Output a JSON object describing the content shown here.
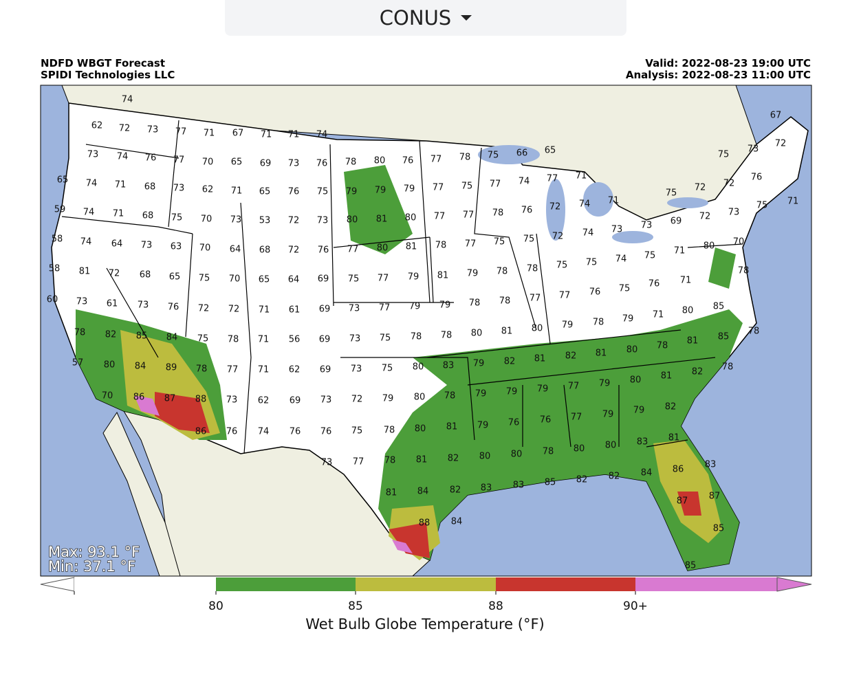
{
  "dropdown": {
    "label": "CONUS"
  },
  "header": {
    "title": "NDFD WBGT Forecast",
    "org": "SPIDI Technologies LLC",
    "valid": "Valid: 2022-08-23 19:00 UTC",
    "analysis": "Analysis: 2022-08-23 11:00 UTC"
  },
  "stats": {
    "max": "Max: 93.1 °F",
    "min": "Min: 37.1 °F"
  },
  "colorbar": {
    "colors": [
      "#ffffff",
      "#4c9e3a",
      "#bcbc3e",
      "#c8352e",
      "#d97ad1"
    ],
    "ticks": [
      "80",
      "85",
      "88",
      "90+"
    ],
    "label": "Wet Bulb Globe Temperature (°F)"
  },
  "map": {
    "station_values": [
      74,
      62,
      72,
      73,
      77,
      71,
      67,
      71,
      71,
      74,
      73,
      74,
      76,
      77,
      70,
      65,
      69,
      73,
      76,
      78,
      80,
      76,
      77,
      78,
      75,
      66,
      65,
      65,
      74,
      71,
      68,
      73,
      62,
      71,
      65,
      76,
      75,
      79,
      79,
      79,
      77,
      75,
      77,
      74,
      77,
      71,
      59,
      74,
      71,
      68,
      75,
      70,
      73,
      53,
      72,
      73,
      80,
      81,
      80,
      77,
      77,
      78,
      76,
      72,
      74,
      71,
      58,
      74,
      64,
      73,
      63,
      70,
      64,
      68,
      72,
      76,
      77,
      80,
      81,
      78,
      77,
      75,
      75,
      72,
      74,
      73,
      58,
      81,
      72,
      68,
      65,
      75,
      70,
      65,
      64,
      69,
      75,
      77,
      79,
      81,
      79,
      78,
      78,
      75,
      75,
      74,
      60,
      73,
      61,
      73,
      76,
      72,
      72,
      71,
      61,
      69,
      73,
      77,
      79,
      79,
      78,
      78,
      77,
      77,
      76,
      75,
      78,
      82,
      85,
      84,
      75,
      78,
      71,
      56,
      69,
      73,
      75,
      78,
      78,
      80,
      81,
      80,
      79,
      78,
      79,
      57,
      80,
      84,
      89,
      78,
      77,
      71,
      62,
      69,
      73,
      75,
      80,
      83,
      79,
      82,
      81,
      82,
      81,
      80,
      78,
      81,
      85,
      70,
      86,
      87,
      88,
      73,
      62,
      69,
      73,
      72,
      79,
      80,
      78,
      79,
      79,
      79,
      77,
      79,
      80,
      81,
      82,
      78,
      86,
      76,
      74,
      76,
      76,
      75,
      78,
      80,
      81,
      79,
      76,
      76,
      77,
      79,
      79,
      82,
      73,
      77,
      78,
      81,
      82,
      80,
      80,
      78,
      80,
      80,
      83,
      81,
      81,
      84,
      82,
      83,
      83,
      85,
      82,
      82,
      84,
      86,
      83,
      88,
      84,
      87,
      87,
      85,
      85,
      67,
      72,
      73,
      75,
      76,
      72,
      72,
      75,
      71,
      75,
      73,
      72,
      69,
      73,
      70,
      80,
      71,
      75,
      78,
      71,
      76,
      80,
      85,
      71,
      78
    ]
  }
}
